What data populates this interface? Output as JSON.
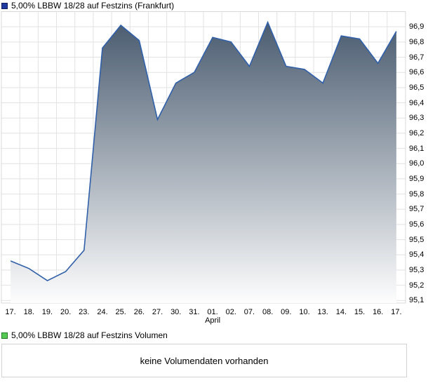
{
  "title": {
    "label": "5,00% LBBW 18/28 auf Festzins (Frankfurt)",
    "marker_color": "#1f3a9e",
    "marker_border": "#131f60"
  },
  "volume_legend": {
    "label": "5,00% LBBW 18/28 auf Festzins Volumen",
    "marker_color": "#56c956",
    "marker_border": "#1f7d1f"
  },
  "volume_box": {
    "message": "keine Volumendaten vorhanden"
  },
  "chart_data": {
    "type": "area",
    "title": "5,00% LBBW 18/28 auf Festzins (Frankfurt)",
    "x_tick_labels": [
      "17.",
      "18.",
      "19.",
      "20.",
      "23.",
      "24.",
      "25.",
      "26.",
      "27.",
      "30.",
      "31.",
      "01.",
      "02.",
      "07.",
      "08.",
      "09.",
      "10.",
      "13.",
      "14.",
      "15.",
      "16.",
      "17."
    ],
    "month_label": {
      "text": "April",
      "under_index": 11
    },
    "values": [
      95.36,
      95.31,
      95.23,
      95.29,
      95.43,
      96.76,
      96.91,
      96.81,
      96.29,
      96.53,
      96.6,
      96.83,
      96.8,
      96.64,
      96.93,
      96.64,
      96.62,
      96.53,
      96.84,
      96.82,
      96.66,
      96.87
    ],
    "y_tick_labels": [
      "96,9",
      "96,8",
      "96,7",
      "96,6",
      "96,5",
      "96,4",
      "96,3",
      "96,2",
      "96,1",
      "96,0",
      "95,9",
      "95,8",
      "95,7",
      "95,6",
      "95,5",
      "95,4",
      "95,3",
      "95,2",
      "95,1"
    ],
    "ylim": [
      95.083,
      97.0
    ],
    "grid": true,
    "legend_position": "top-left",
    "colors": {
      "line": "#3060aa",
      "fill_top": "#44566b",
      "fill_bottom": "#ffffff",
      "grid": "#e2e2e2",
      "border": "#d8d8d8"
    }
  }
}
